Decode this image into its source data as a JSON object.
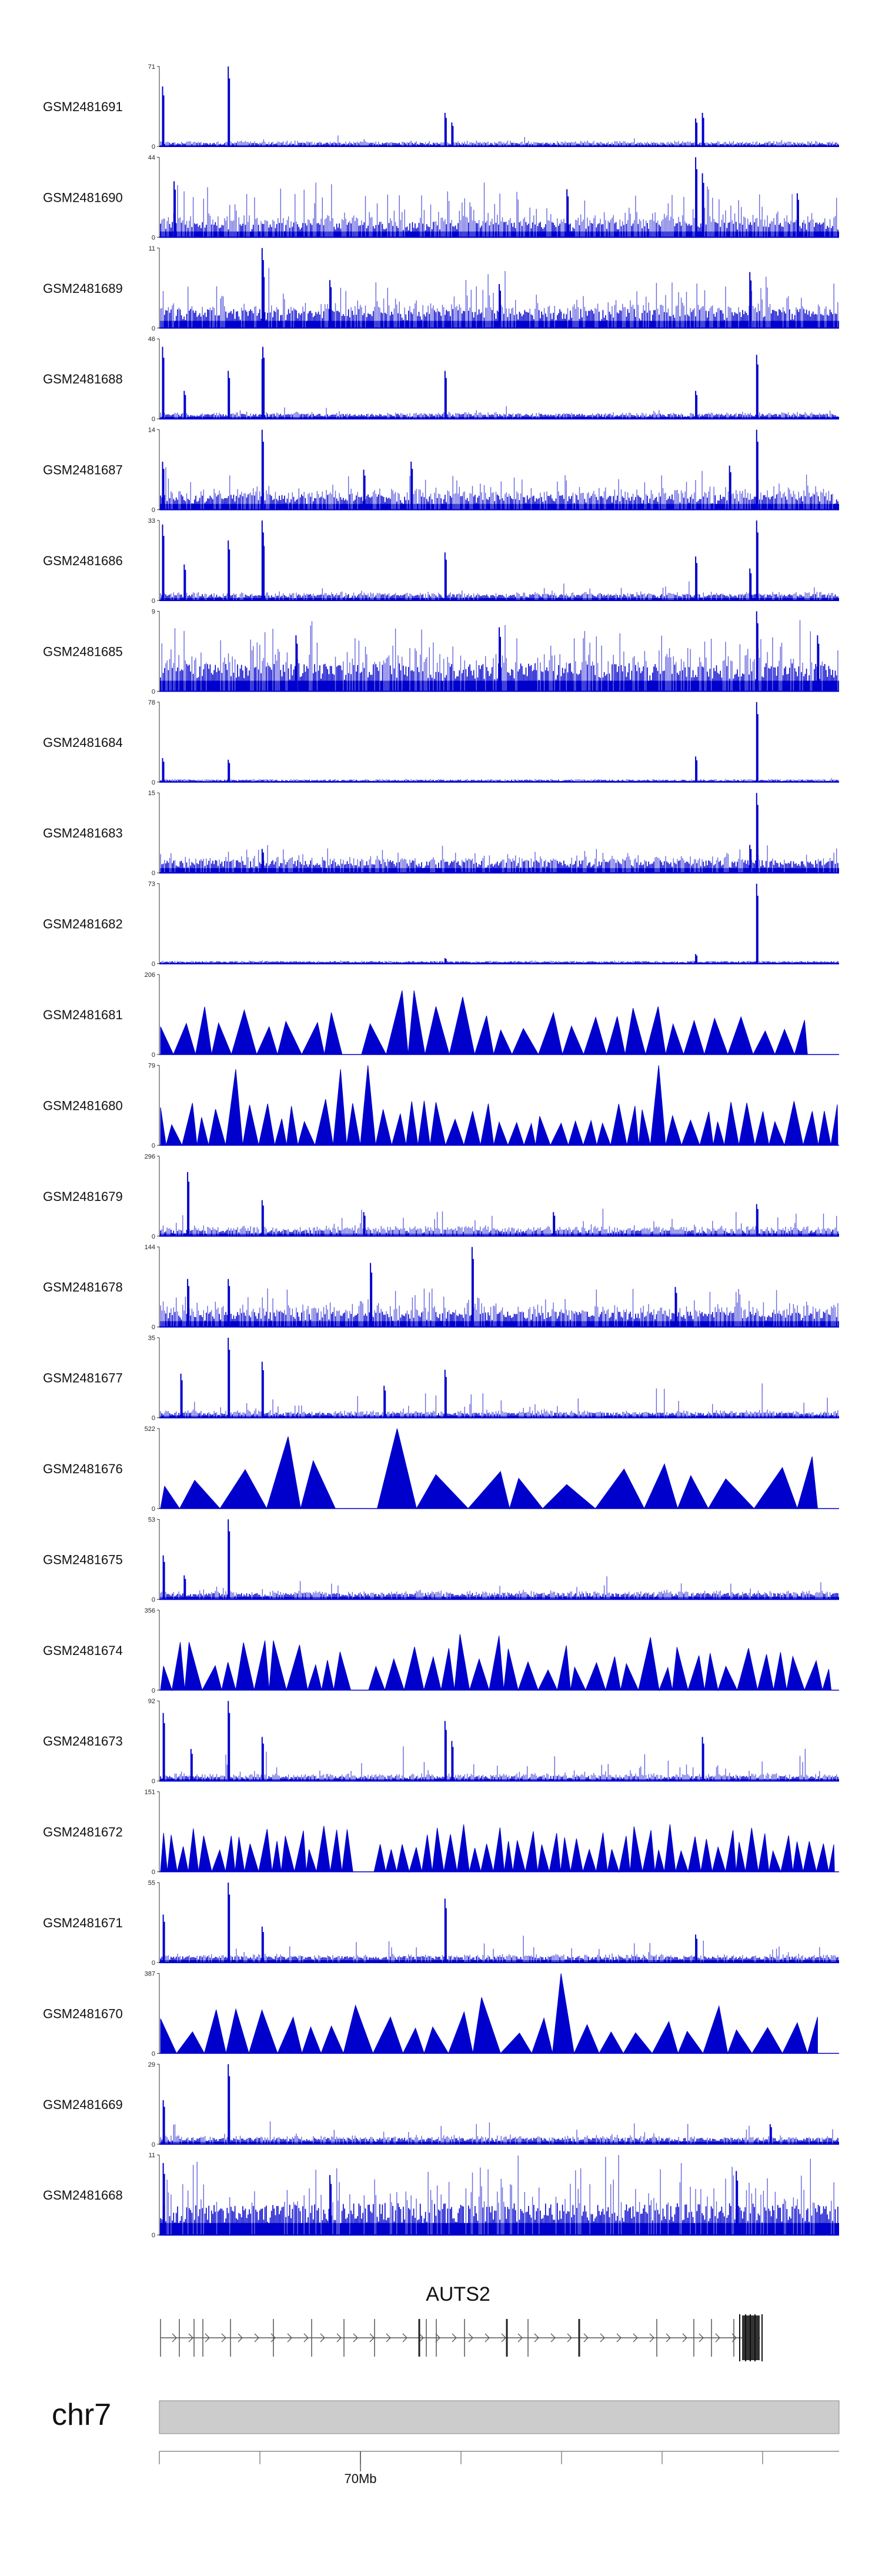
{
  "chart_data": {
    "type": "genome-browser coverage tracks",
    "tracks": [
      {
        "name": "GSM2481691",
        "max": 71,
        "style": "line"
      },
      {
        "name": "GSM2481690",
        "max": 44,
        "style": "line"
      },
      {
        "name": "GSM2481689",
        "max": 11,
        "style": "line"
      },
      {
        "name": "GSM2481688",
        "max": 46,
        "style": "line"
      },
      {
        "name": "GSM2481687",
        "max": 14,
        "style": "line"
      },
      {
        "name": "GSM2481686",
        "max": 33,
        "style": "line"
      },
      {
        "name": "GSM2481685",
        "max": 9,
        "style": "line"
      },
      {
        "name": "GSM2481684",
        "max": 78,
        "style": "line"
      },
      {
        "name": "GSM2481683",
        "max": 15,
        "style": "line"
      },
      {
        "name": "GSM2481682",
        "max": 73,
        "style": "line"
      },
      {
        "name": "GSM2481681",
        "max": 206,
        "style": "triangle"
      },
      {
        "name": "GSM2481680",
        "max": 79,
        "style": "triangle"
      },
      {
        "name": "GSM2481679",
        "max": 296,
        "style": "line"
      },
      {
        "name": "GSM2481678",
        "max": 144,
        "style": "line"
      },
      {
        "name": "GSM2481677",
        "max": 35,
        "style": "line"
      },
      {
        "name": "GSM2481676",
        "max": 522,
        "style": "triangle"
      },
      {
        "name": "GSM2481675",
        "max": 53,
        "style": "line"
      },
      {
        "name": "GSM2481674",
        "max": 356,
        "style": "triangle"
      },
      {
        "name": "GSM2481673",
        "max": 92,
        "style": "line"
      },
      {
        "name": "GSM2481672",
        "max": 151,
        "style": "triangle"
      },
      {
        "name": "GSM2481671",
        "max": 55,
        "style": "line"
      },
      {
        "name": "GSM2481670",
        "max": 387,
        "style": "triangle"
      },
      {
        "name": "GSM2481669",
        "max": 29,
        "style": "line"
      },
      {
        "name": "GSM2481668",
        "max": 11,
        "style": "line"
      }
    ],
    "y_min": 0,
    "gene": "AUTS2",
    "chromosome": "chr7",
    "x_tick_label": "70Mb",
    "colors": {
      "signal": "#0000cc",
      "signal_light": "#6666e0",
      "ideogram": "#cccccc",
      "gene": "#555555"
    }
  }
}
